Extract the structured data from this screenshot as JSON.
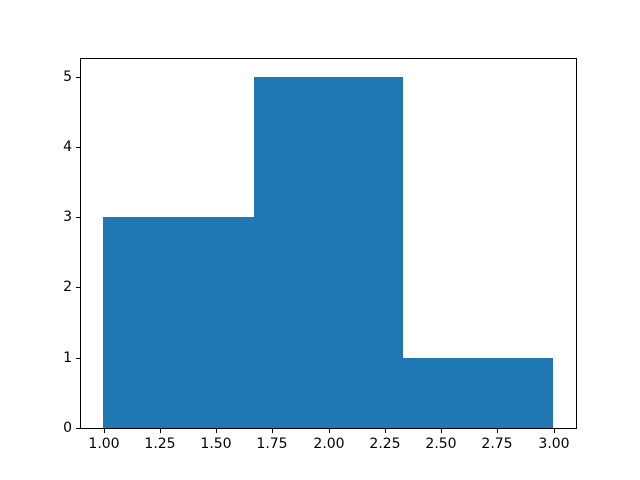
{
  "chart_data": {
    "type": "bar",
    "subtype": "histogram",
    "title": "",
    "xlabel": "",
    "ylabel": "",
    "bin_edges": [
      1.0,
      1.6667,
      2.3333,
      3.0
    ],
    "counts": [
      3,
      5,
      1
    ],
    "xlim": [
      0.9,
      3.1
    ],
    "ylim": [
      0,
      5.25
    ],
    "x_tick_values": [
      1.0,
      1.25,
      1.5,
      1.75,
      2.0,
      2.25,
      2.5,
      2.75,
      3.0
    ],
    "x_tick_labels": [
      "1.00",
      "1.25",
      "1.50",
      "1.75",
      "2.00",
      "2.25",
      "2.50",
      "2.75",
      "3.00"
    ],
    "y_tick_values": [
      0,
      1,
      2,
      3,
      4,
      5
    ],
    "y_tick_labels": [
      "0",
      "1",
      "2",
      "3",
      "4",
      "5"
    ],
    "grid": false,
    "legend": null,
    "bar_color": "#1f77b4",
    "spine_color": "#000000",
    "background_color": "#ffffff"
  }
}
